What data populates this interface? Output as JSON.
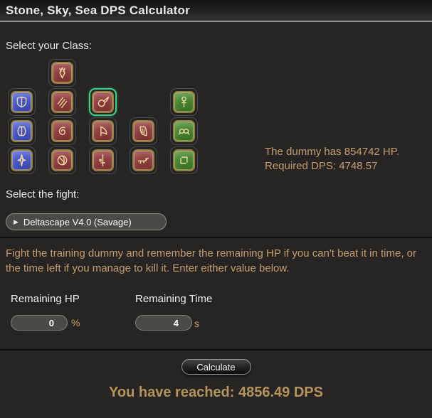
{
  "header": {
    "title": "Stone, Sky, Sea DPS Calculator"
  },
  "class_section": {
    "label": "Select your Class:",
    "icons": [
      {
        "name": "dragoon",
        "row": 1,
        "col": 2,
        "role": "dps",
        "selected": false
      },
      {
        "name": "paladin",
        "row": 2,
        "col": 1,
        "role": "tank",
        "selected": false
      },
      {
        "name": "monk",
        "row": 2,
        "col": 2,
        "role": "dps",
        "selected": false
      },
      {
        "name": "black-mage",
        "row": 2,
        "col": 3,
        "role": "dps",
        "selected": true
      },
      {
        "name": "white-mage",
        "row": 2,
        "col": 5,
        "role": "healer",
        "selected": false
      },
      {
        "name": "warrior",
        "row": 3,
        "col": 1,
        "role": "tank",
        "selected": false
      },
      {
        "name": "ninja",
        "row": 3,
        "col": 2,
        "role": "dps",
        "selected": false
      },
      {
        "name": "summoner",
        "row": 3,
        "col": 3,
        "role": "dps",
        "selected": false
      },
      {
        "name": "bard",
        "row": 3,
        "col": 4,
        "role": "dps",
        "selected": false
      },
      {
        "name": "scholar",
        "row": 3,
        "col": 5,
        "role": "healer",
        "selected": false
      },
      {
        "name": "dark-knight",
        "row": 4,
        "col": 1,
        "role": "tank",
        "selected": false
      },
      {
        "name": "samurai",
        "row": 4,
        "col": 2,
        "role": "dps",
        "selected": false
      },
      {
        "name": "red-mage",
        "row": 4,
        "col": 3,
        "role": "dps",
        "selected": false
      },
      {
        "name": "machinist",
        "row": 4,
        "col": 4,
        "role": "dps",
        "selected": false
      },
      {
        "name": "astrologian",
        "row": 4,
        "col": 5,
        "role": "healer",
        "selected": false
      }
    ]
  },
  "dummy_info": {
    "hp_line": "The dummy has 854742 HP.",
    "dps_line": "Required DPS: 4748.57"
  },
  "fight_section": {
    "label": "Select the fight:",
    "dropdown_arrow": "▶",
    "selected_fight": "Deltascape V4.0 (Savage)"
  },
  "instructions": "Fight the training dummy and remember the remaining HP if you can't beat it in time, or the time left if you manage to kill it. Enter either value below.",
  "inputs": {
    "remaining_hp": {
      "label": "Remaining HP",
      "value": "0",
      "unit": "%"
    },
    "remaining_time": {
      "label": "Remaining Time",
      "value": "4",
      "unit": "s"
    }
  },
  "calculate_button": {
    "label": "Calculate"
  },
  "result": {
    "text": "You have reached: 4856.49 DPS"
  },
  "colors": {
    "tank": "#4053c8",
    "dps": "#964141",
    "healer": "#47823a",
    "selected_border": "#3ed18b",
    "gold_text": "#c49d6e",
    "result_text": "#b5945a"
  }
}
